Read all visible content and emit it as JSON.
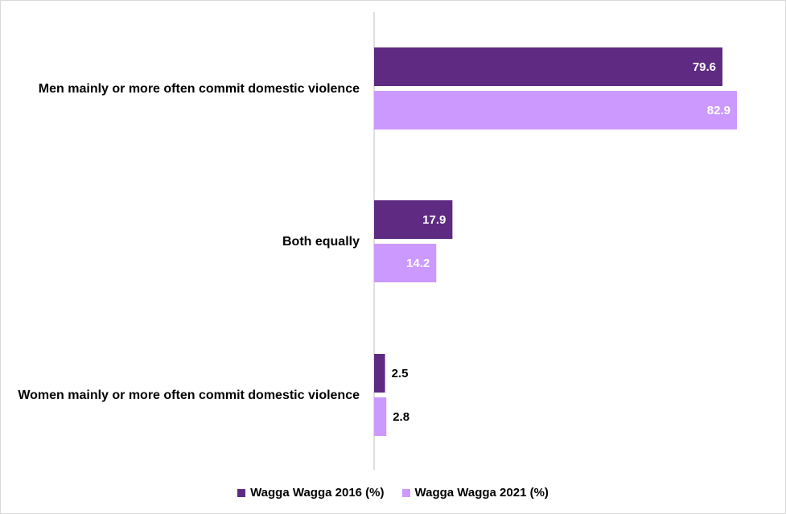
{
  "chart_data": {
    "type": "bar",
    "orientation": "horizontal",
    "categories": [
      "Men mainly or more often commit domestic violence",
      "Both equally",
      "Women mainly or more often commit domestic violence"
    ],
    "series": [
      {
        "name": "Wagga Wagga 2016 (%)",
        "values": [
          79.6,
          17.9,
          2.5
        ],
        "color": "#5f2a82"
      },
      {
        "name": "Wagga Wagga 2021 (%)",
        "values": [
          82.9,
          14.2,
          2.8
        ],
        "color": "#cc99ff"
      }
    ],
    "xlim": [
      0,
      85
    ],
    "grid": false,
    "legend_position": "bottom"
  }
}
